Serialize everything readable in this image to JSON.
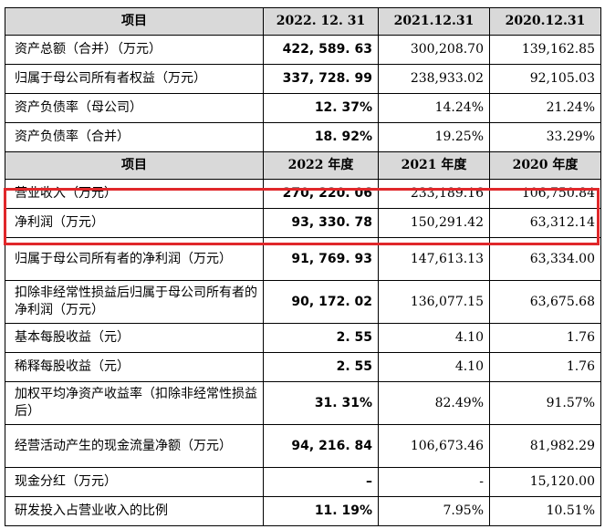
{
  "header1": {
    "item": "项目",
    "c1": "2022. 12. 31",
    "c2": "2021.12.31",
    "c3": "2020.12.31"
  },
  "section1": [
    {
      "label": "资产总额（合并）（万元）",
      "v1": "422, 589. 63",
      "v2": "300,208.70",
      "v3": "139,162.85"
    },
    {
      "label": "归属于母公司所有者权益（万元）",
      "v1": "337, 728. 99",
      "v2": "238,933.02",
      "v3": "92,105.03"
    },
    {
      "label": "资产负债率（母公司）",
      "v1": "12. 37%",
      "v2": "14.24%",
      "v3": "21.24%"
    },
    {
      "label": "资产负债率（合并）",
      "v1": "18. 92%",
      "v2": "19.25%",
      "v3": "33.29%"
    }
  ],
  "header2": {
    "item": "项目",
    "c1": "2022 年度",
    "c2": "2021 年度",
    "c3": "2020 年度"
  },
  "section2": [
    {
      "label": "营业收入（万元）",
      "v1": "270, 220. 06",
      "v2": "233,189.16",
      "v3": "106,750.84"
    },
    {
      "label": "净利润（万元）",
      "v1": "93, 330. 78",
      "v2": "150,291.42",
      "v3": "63,312.14"
    },
    {
      "label": "归属于母公司所有者的净利润（万元）",
      "v1": "91, 769. 93",
      "v2": "147,613.13",
      "v3": "63,334.00"
    },
    {
      "label": "扣除非经常性损益后归属于母公司所有者的净利润（万元）",
      "v1": "90, 172. 02",
      "v2": "136,077.15",
      "v3": "63,675.68"
    },
    {
      "label": "基本每股收益（元）",
      "v1": "2. 55",
      "v2": "4.10",
      "v3": "1.76"
    },
    {
      "label": "稀释每股收益（元）",
      "v1": "2. 55",
      "v2": "4.10",
      "v3": "1.76"
    },
    {
      "label": "加权平均净资产收益率（扣除非经常性损益后）",
      "v1": "31. 31%",
      "v2": "82.49%",
      "v3": "91.57%"
    },
    {
      "label": "经营活动产生的现金流量净额（万元）",
      "v1": "94, 216. 84",
      "v2": "106,673.46",
      "v3": "81,982.29"
    },
    {
      "label": "现金分红（万元）",
      "v1": "–",
      "v2": "-",
      "v3": "15,120.00"
    },
    {
      "label": "研发投入占营业收入的比例",
      "v1": "11. 19%",
      "v2": "7.95%",
      "v3": "10.51%"
    }
  ],
  "highlight_color": "#e0272a"
}
